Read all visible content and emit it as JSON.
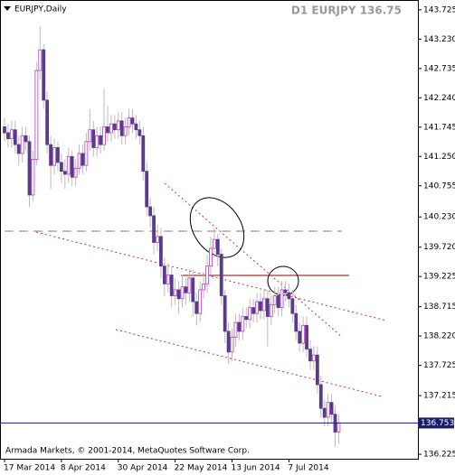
{
  "chart_data": {
    "type": "candlestick",
    "title": "EURJPY,Daily",
    "info": "D1 EURJPY 136.75",
    "footer": "Armada Markets, © 2001-2014, MetaQuotes Software Corp.",
    "up_color": "#b040c0",
    "down_color": "#5a3a8a",
    "wick_color": "#bbbbbb",
    "price_line_color": "#1a1a6e",
    "categories": [
      "17 Mar 2014",
      null,
      null,
      null,
      null,
      null,
      null,
      null,
      null,
      null,
      null,
      null,
      null,
      null,
      null,
      null,
      "8 Apr 2014",
      null,
      null,
      null,
      null,
      null,
      null,
      null,
      null,
      null,
      null,
      null,
      null,
      null,
      null,
      null,
      "30 Apr 2014",
      null,
      null,
      null,
      null,
      null,
      null,
      null,
      null,
      null,
      null,
      null,
      null,
      null,
      null,
      null,
      "22 May 2014",
      null,
      null,
      null,
      null,
      null,
      null,
      null,
      null,
      null,
      null,
      null,
      null,
      null,
      null,
      null,
      "13 Jun 2014",
      null,
      null,
      null,
      null,
      null,
      null,
      null,
      null,
      null,
      null,
      null,
      null,
      null,
      null,
      null,
      "7 Jul 2014",
      null,
      null,
      null,
      null,
      null,
      null,
      null,
      null,
      null,
      null,
      null,
      null,
      null,
      null
    ],
    "open": [
      141.75,
      141.65,
      141.55,
      141.7,
      141.45,
      141.3,
      141.6,
      141.5,
      140.6,
      141.2,
      142.7,
      143.05,
      142.2,
      141.45,
      141.1,
      141.4,
      141.15,
      141.0,
      140.95,
      141.25,
      140.9,
      141.05,
      141.3,
      141.1,
      141.5,
      141.7,
      141.4,
      141.6,
      141.45,
      141.75,
      141.65,
      141.8,
      141.7,
      141.85,
      141.6,
      141.75,
      141.9,
      141.8,
      141.7,
      141.6,
      141.0,
      140.4,
      140.25,
      139.8,
      139.9,
      139.4,
      139.1,
      139.25,
      138.9,
      139.0,
      138.85,
      139.05,
      138.95,
      139.2,
      138.8,
      138.6,
      139.0,
      139.1,
      139.4,
      139.7,
      139.85,
      139.6,
      138.9,
      138.3,
      137.95,
      138.2,
      138.45,
      138.3,
      138.55,
      138.5,
      138.7,
      138.6,
      138.8,
      138.65,
      138.85,
      138.55,
      138.75,
      138.9,
      138.7,
      139.0,
      138.95,
      138.85,
      138.6,
      138.3,
      138.1,
      138.4,
      138.0,
      137.8,
      137.9,
      137.4,
      137.0,
      136.85,
      137.1,
      136.9,
      136.6
    ],
    "high": [
      141.9,
      141.8,
      141.85,
      141.85,
      141.6,
      141.75,
      141.75,
      141.6,
      141.35,
      142.85,
      143.45,
      143.15,
      142.35,
      141.6,
      141.55,
      141.5,
      141.3,
      141.2,
      141.4,
      141.35,
      141.2,
      141.45,
      141.45,
      141.65,
      142.05,
      141.85,
      141.75,
      141.75,
      142.4,
      142.1,
      141.95,
      141.95,
      142.0,
      142.0,
      141.9,
      142.05,
      142.05,
      141.95,
      141.85,
      141.75,
      141.15,
      140.55,
      140.4,
      140.1,
      140.05,
      139.55,
      139.45,
      139.4,
      139.2,
      139.15,
      139.25,
      139.2,
      139.35,
      139.35,
      138.95,
      139.15,
      139.3,
      139.6,
      139.9,
      140.05,
      139.95,
      139.7,
      139.0,
      138.45,
      138.35,
      138.6,
      138.6,
      138.7,
      138.7,
      138.85,
      138.85,
      138.95,
      138.95,
      139.0,
      139.0,
      138.9,
      139.05,
      139.05,
      139.15,
      139.15,
      139.1,
      139.0,
      138.75,
      138.45,
      138.55,
      138.55,
      138.15,
      138.05,
      138.05,
      137.55,
      137.15,
      137.25,
      137.25,
      137.05,
      136.9
    ],
    "low": [
      141.5,
      141.4,
      141.4,
      141.3,
      141.1,
      141.15,
      141.35,
      140.4,
      140.5,
      141.1,
      142.55,
      142.05,
      141.3,
      140.7,
      140.95,
      141.0,
      140.8,
      140.7,
      140.8,
      140.75,
      140.75,
      140.95,
      140.95,
      141.0,
      141.35,
      141.25,
      141.25,
      141.3,
      141.35,
      141.5,
      141.5,
      141.55,
      141.55,
      141.45,
      141.45,
      141.6,
      141.65,
      141.55,
      141.45,
      140.85,
      140.25,
      140.05,
      139.6,
      139.65,
      139.2,
      138.9,
      138.95,
      138.7,
      138.75,
      138.6,
      138.7,
      138.75,
      138.8,
      138.55,
      138.4,
      138.45,
      138.85,
      138.95,
      139.25,
      139.55,
      139.4,
      138.75,
      138.1,
      137.75,
      137.8,
      138.05,
      138.15,
      138.15,
      138.35,
      138.35,
      138.45,
      138.45,
      138.5,
      138.5,
      138.05,
      138.4,
      138.6,
      138.55,
      138.55,
      138.8,
      138.7,
      138.45,
      138.15,
      137.95,
      137.95,
      137.85,
      137.65,
      137.65,
      137.25,
      136.85,
      136.7,
      136.7,
      136.75,
      136.35,
      136.4
    ],
    "close": [
      141.65,
      141.55,
      141.7,
      141.45,
      141.3,
      141.6,
      141.5,
      140.6,
      141.2,
      142.7,
      143.05,
      142.2,
      141.45,
      141.1,
      141.4,
      141.15,
      141.0,
      140.95,
      141.25,
      140.9,
      141.05,
      141.3,
      141.1,
      141.5,
      141.7,
      141.4,
      141.6,
      141.45,
      141.75,
      141.65,
      141.8,
      141.7,
      141.85,
      141.6,
      141.75,
      141.9,
      141.8,
      141.7,
      141.6,
      141.0,
      140.4,
      140.25,
      139.8,
      139.9,
      139.4,
      139.1,
      139.25,
      138.9,
      139.0,
      138.85,
      139.05,
      138.95,
      139.2,
      138.8,
      138.6,
      139.0,
      139.1,
      139.4,
      139.7,
      139.85,
      139.6,
      138.9,
      138.3,
      137.95,
      138.2,
      138.45,
      138.3,
      138.55,
      138.5,
      138.7,
      138.6,
      138.8,
      138.65,
      138.85,
      138.55,
      138.75,
      138.9,
      138.7,
      139.0,
      138.95,
      138.85,
      138.6,
      138.3,
      138.1,
      138.4,
      138.0,
      137.8,
      137.9,
      137.4,
      137.0,
      136.85,
      137.1,
      136.9,
      136.6,
      136.753
    ],
    "ylim": [
      136.15,
      143.89
    ],
    "yticks": [
      {
        "value": 143.725,
        "label": "143.725"
      },
      {
        "value": 143.23,
        "label": "143.230"
      },
      {
        "value": 142.735,
        "label": "142.735"
      },
      {
        "value": 142.24,
        "label": "142.240"
      },
      {
        "value": 141.745,
        "label": "141.745"
      },
      {
        "value": 141.25,
        "label": "141.250"
      },
      {
        "value": 140.755,
        "label": "140.755"
      },
      {
        "value": 140.23,
        "label": "140.230"
      },
      {
        "value": 139.72,
        "label": "139.720"
      },
      {
        "value": 139.225,
        "label": "139.225"
      },
      {
        "value": 138.715,
        "label": "138.715"
      },
      {
        "value": 138.22,
        "label": "138.220"
      },
      {
        "value": 137.725,
        "label": "137.725"
      },
      {
        "value": 137.215,
        "label": "137.215"
      },
      {
        "value": 136.225,
        "label": "136.225"
      }
    ]
  }
}
